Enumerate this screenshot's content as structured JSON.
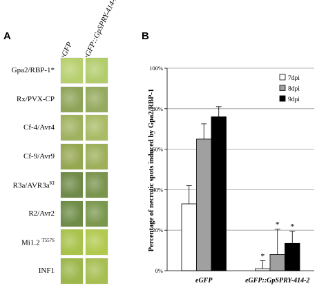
{
  "panel_a": {
    "letter": "A",
    "columns": [
      "eGFP",
      "eGFP::GpSPRY-414-2"
    ],
    "rows": [
      {
        "label": "Gpa2/RBP-1*",
        "sup": "",
        "colors": [
          "#b7cf6e",
          "#b2cc6c"
        ]
      },
      {
        "label": "Rx/PVX-CP",
        "sup": "",
        "colors": [
          "#8fa458",
          "#95aa5e"
        ]
      },
      {
        "label": "Cf-4/Avr4",
        "sup": "",
        "colors": [
          "#9fb25f",
          "#a9bb66"
        ]
      },
      {
        "label": "Cf-9/Avr9",
        "sup": "",
        "colors": [
          "#96a752",
          "#9daf5a"
        ]
      },
      {
        "label": "R3a/AVR3a",
        "sup": "KI",
        "colors": [
          "#6f8a48",
          "#7a934d"
        ]
      },
      {
        "label": "R2/Avr2",
        "sup": "",
        "colors": [
          "#6e8c47",
          "#7b984f"
        ]
      },
      {
        "label": "Mi1.2 ",
        "sup": "T557S",
        "colors": [
          "#a8c24a",
          "#b2c94f"
        ]
      },
      {
        "label": "INF1",
        "sup": "",
        "colors": [
          "#9cb74b",
          "#a7be52"
        ]
      }
    ]
  },
  "panel_b": {
    "letter": "B"
  },
  "chart_data": {
    "type": "bar",
    "categories": [
      "eGFP",
      "eGFP::GpSPRY-414-2"
    ],
    "series": [
      {
        "name": "7dpi",
        "values": [
          33,
          1
        ],
        "errors": [
          9,
          4
        ],
        "color": "#ffffff",
        "significance": [
          "",
          "*"
        ]
      },
      {
        "name": "8dpi",
        "values": [
          65,
          8
        ],
        "errors": [
          7.5,
          12.5
        ],
        "color": "#a0a0a0",
        "significance": [
          "",
          "*"
        ]
      },
      {
        "name": "9dpi",
        "values": [
          76,
          13.5
        ],
        "errors": [
          5,
          6
        ],
        "color": "#000000",
        "significance": [
          "",
          "*"
        ]
      }
    ],
    "ylabel": "Percentage of necrotic spots induced by Gpa2/RBP-1",
    "ylim": [
      0,
      100
    ],
    "yticks": [
      "0%",
      "20%",
      "40%",
      "60%",
      "80%",
      "100%"
    ],
    "grid": true,
    "legend_position": "top-right"
  }
}
